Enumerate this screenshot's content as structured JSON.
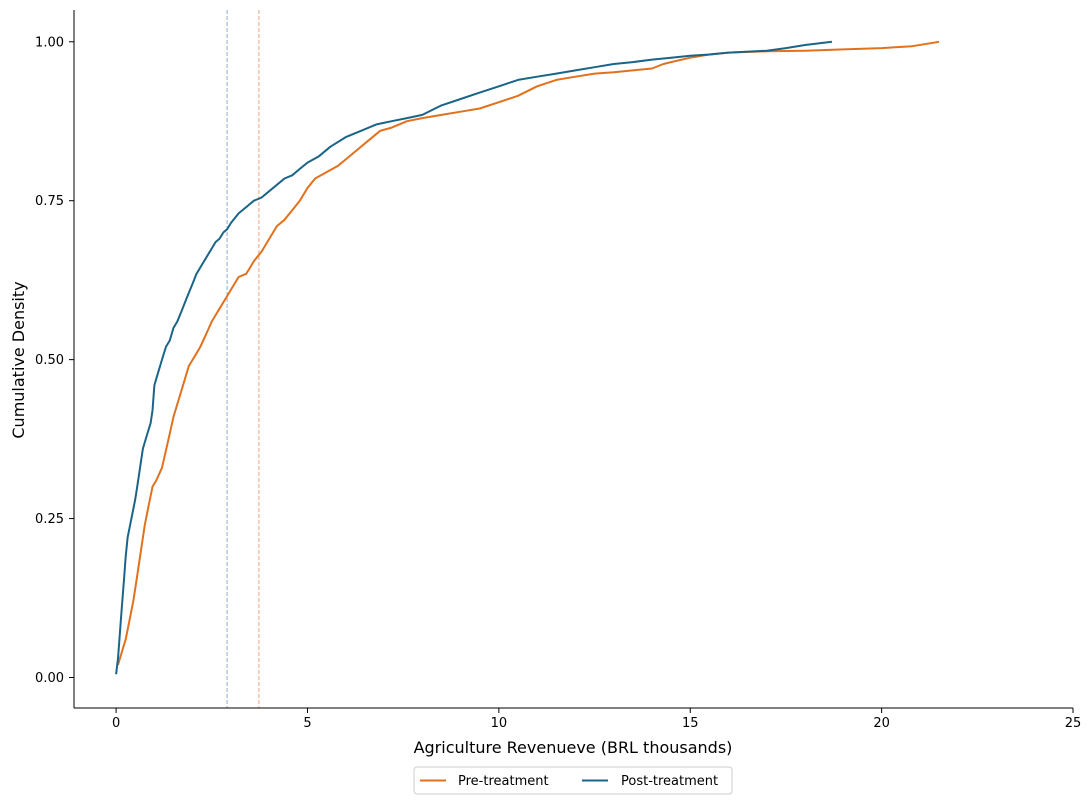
{
  "chart_data": {
    "type": "line",
    "title": "",
    "xlabel": "Agriculture Revenueve (BRL thousands)",
    "ylabel": "Cumulative Density",
    "xlim": [
      -1.1,
      25
    ],
    "ylim": [
      -0.048,
      1.05
    ],
    "x_ticks": [
      0,
      5,
      10,
      15,
      20,
      25
    ],
    "y_ticks": [
      0.0,
      0.25,
      0.5,
      0.75,
      1.0
    ],
    "x_tick_labels": [
      "0",
      "5",
      "10",
      "15",
      "20",
      "25"
    ],
    "y_tick_labels": [
      "0.00",
      "0.25",
      "0.50",
      "0.75",
      "1.00"
    ],
    "grid": false,
    "legend_position": "bottom-center",
    "series": [
      {
        "name": "Pre-treatment",
        "color": "#e2711d",
        "x": [
          0.05,
          0.15,
          0.25,
          0.35,
          0.45,
          0.55,
          0.65,
          0.75,
          0.85,
          0.95,
          1.05,
          1.2,
          1.35,
          1.5,
          1.6,
          1.7,
          1.8,
          1.9,
          2.0,
          2.1,
          2.2,
          2.35,
          2.5,
          2.6,
          2.7,
          2.8,
          2.9,
          3.0,
          3.2,
          3.4,
          3.5,
          3.6,
          3.8,
          4.0,
          4.2,
          4.4,
          4.6,
          4.8,
          5.0,
          5.2,
          5.5,
          5.8,
          6.0,
          6.3,
          6.6,
          6.9,
          7.2,
          7.6,
          8.0,
          8.5,
          9.0,
          9.5,
          10.0,
          10.5,
          11.0,
          11.5,
          12.0,
          12.5,
          13.0,
          13.5,
          14.0,
          14.3,
          14.5,
          15.0,
          15.5,
          16.0,
          17.0,
          18.0,
          19.0,
          20.0,
          20.8,
          21.5
        ],
        "values": [
          0.02,
          0.04,
          0.06,
          0.09,
          0.12,
          0.16,
          0.2,
          0.24,
          0.27,
          0.3,
          0.31,
          0.33,
          0.37,
          0.41,
          0.43,
          0.45,
          0.47,
          0.49,
          0.5,
          0.51,
          0.52,
          0.54,
          0.56,
          0.57,
          0.58,
          0.59,
          0.6,
          0.61,
          0.63,
          0.635,
          0.645,
          0.655,
          0.67,
          0.69,
          0.71,
          0.72,
          0.735,
          0.75,
          0.77,
          0.785,
          0.795,
          0.805,
          0.815,
          0.83,
          0.845,
          0.86,
          0.865,
          0.875,
          0.88,
          0.885,
          0.89,
          0.895,
          0.905,
          0.915,
          0.93,
          0.94,
          0.945,
          0.95,
          0.952,
          0.955,
          0.958,
          0.965,
          0.968,
          0.975,
          0.98,
          0.983,
          0.985,
          0.986,
          0.988,
          0.99,
          0.993,
          1.0
        ]
      },
      {
        "name": "Post-treatment",
        "color": "#1a6587",
        "x": [
          0.0,
          0.05,
          0.1,
          0.15,
          0.2,
          0.25,
          0.3,
          0.4,
          0.5,
          0.55,
          0.6,
          0.65,
          0.7,
          0.8,
          0.9,
          0.95,
          1.0,
          1.1,
          1.2,
          1.3,
          1.4,
          1.5,
          1.6,
          1.7,
          1.8,
          1.9,
          2.0,
          2.1,
          2.2,
          2.3,
          2.4,
          2.5,
          2.6,
          2.7,
          2.8,
          2.9,
          3.0,
          3.2,
          3.4,
          3.6,
          3.8,
          4.0,
          4.2,
          4.4,
          4.6,
          4.8,
          5.0,
          5.3,
          5.6,
          6.0,
          6.4,
          6.8,
          7.2,
          7.6,
          8.0,
          8.5,
          9.0,
          9.5,
          10.0,
          10.5,
          11.0,
          11.5,
          12.0,
          12.5,
          13.0,
          13.5,
          14.0,
          14.5,
          15.0,
          15.5,
          16.0,
          17.0,
          17.5,
          18.0,
          18.7
        ],
        "values": [
          0.005,
          0.03,
          0.07,
          0.11,
          0.15,
          0.19,
          0.22,
          0.25,
          0.28,
          0.3,
          0.32,
          0.34,
          0.36,
          0.38,
          0.4,
          0.42,
          0.46,
          0.48,
          0.5,
          0.52,
          0.53,
          0.55,
          0.56,
          0.575,
          0.59,
          0.605,
          0.62,
          0.635,
          0.645,
          0.655,
          0.665,
          0.675,
          0.685,
          0.69,
          0.7,
          0.705,
          0.715,
          0.73,
          0.74,
          0.75,
          0.755,
          0.765,
          0.775,
          0.785,
          0.79,
          0.8,
          0.81,
          0.82,
          0.835,
          0.85,
          0.86,
          0.87,
          0.875,
          0.88,
          0.885,
          0.9,
          0.91,
          0.92,
          0.93,
          0.94,
          0.945,
          0.95,
          0.955,
          0.96,
          0.965,
          0.968,
          0.972,
          0.975,
          0.978,
          0.98,
          0.983,
          0.986,
          0.99,
          0.995,
          1.0
        ]
      }
    ],
    "vertical_lines": [
      {
        "x": 2.9,
        "color": "#a6bfdc"
      },
      {
        "x": 3.73,
        "color": "#f2b9a1"
      }
    ]
  }
}
